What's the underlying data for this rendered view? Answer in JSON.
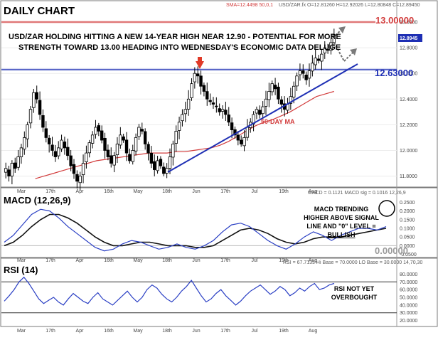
{
  "chart_data": {
    "type": "candlestick",
    "title": "DAILY CHART",
    "symbol_readout": "USD/ZAR.fx O=12.81260 H=12.92026 L=12.80848 C=12.89450",
    "sma_readout": "SMA=12.4498 50,0,1",
    "last_price_label": "12.8945",
    "headline": [
      "USD/ZAR HOLDING HITTING A NEW 14-YEAR HIGH NEAR 12.90 - POTENTIAL FOR MORE",
      "STRENGTH TOWARD 13.00 HEADING INTO WEDNESDAY'S ECONOMIC DATA DELUGE"
    ],
    "price_ylim": [
      11.72,
      13.05
    ],
    "price_ticks": [
      "13.0000",
      "12.8000",
      "12.6000",
      "12.4000",
      "12.2000",
      "12.0000",
      "11.8000"
    ],
    "levels": [
      {
        "label": "13.00000",
        "value": 13.0,
        "color": "#d23c3c"
      },
      {
        "label": "12.63000",
        "value": 12.63,
        "color": "#1e2fb4"
      }
    ],
    "ma_label": "50-DAY MA",
    "x_labels": [
      "Mar",
      "17th",
      "Apr",
      "16th",
      "May",
      "18th",
      "Jun",
      "17th",
      "Jul",
      "19th",
      "Aug"
    ],
    "closes": [
      11.86,
      11.8,
      11.9,
      11.86,
      11.95,
      12.02,
      12.1,
      12.2,
      12.32,
      12.45,
      12.4,
      12.28,
      12.18,
      12.1,
      12.05,
      12.0,
      11.95,
      12.02,
      12.08,
      12.02,
      11.96,
      11.88,
      11.82,
      11.76,
      11.8,
      11.9,
      11.98,
      12.06,
      12.12,
      12.18,
      12.15,
      12.08,
      12.0,
      11.95,
      11.9,
      11.96,
      12.05,
      12.12,
      12.08,
      11.98,
      11.92,
      12.0,
      12.1,
      12.18,
      12.15,
      12.05,
      11.98,
      11.9,
      11.85,
      11.92,
      11.88,
      11.82,
      11.86,
      11.95,
      12.05,
      12.15,
      12.22,
      12.28,
      12.32,
      12.4,
      12.52,
      12.6,
      12.58,
      12.5,
      12.46,
      12.4,
      12.38,
      12.36,
      12.34,
      12.3,
      12.32,
      12.28,
      12.22,
      12.16,
      12.12,
      12.08,
      12.05,
      12.1,
      12.18,
      12.22,
      12.28,
      12.32,
      12.28,
      12.34,
      12.4,
      12.46,
      12.52,
      12.48,
      12.4,
      12.36,
      12.32,
      12.36,
      12.42,
      12.5,
      12.58,
      12.62,
      12.6,
      12.55,
      12.62,
      12.68,
      12.72,
      12.7,
      12.75,
      12.8,
      12.78,
      12.84,
      12.9
    ],
    "ma50": [
      11.78,
      11.8,
      11.82,
      11.84,
      11.86,
      11.88,
      11.9,
      11.92,
      11.93,
      11.94,
      11.95,
      11.96,
      11.97,
      11.98,
      11.98,
      11.98,
      11.99,
      11.99,
      12.0,
      12.01,
      12.02,
      12.04,
      12.07,
      12.11,
      12.15,
      12.19,
      12.22,
      12.24,
      12.27,
      12.3,
      12.34,
      12.38,
      12.42,
      12.44,
      12.46
    ],
    "macd": {
      "title": "MACD (12,26,9)",
      "readout": "MACD = 0.1121 MACD sig = 0.1016   12,26,9",
      "ylim": [
        -0.06,
        0.26
      ],
      "ticks": [
        "0.2500",
        "0.2000",
        "0.1500",
        "0.1000",
        "0.0500",
        "0.0000",
        "-0.0500"
      ],
      "zero_label": "0.00000",
      "annotation": [
        "MACD TRENDING",
        "HIGHER ABOVE SIGNAL",
        "LINE AND \"0\" LEVEL =",
        "BULLISH"
      ],
      "macd_line": [
        0.02,
        0.06,
        0.12,
        0.18,
        0.21,
        0.2,
        0.16,
        0.11,
        0.07,
        0.03,
        -0.01,
        -0.03,
        -0.02,
        0.01,
        0.03,
        0.02,
        0.0,
        -0.02,
        -0.01,
        0.01,
        -0.01,
        -0.02,
        0.0,
        0.03,
        0.08,
        0.12,
        0.13,
        0.11,
        0.07,
        0.03,
        0.0,
        -0.02,
        0.01,
        0.05,
        0.08,
        0.06,
        0.03,
        0.06,
        0.08,
        0.1,
        0.1,
        0.09,
        0.11
      ],
      "signal_line": [
        0.0,
        0.02,
        0.06,
        0.11,
        0.15,
        0.18,
        0.18,
        0.16,
        0.13,
        0.09,
        0.05,
        0.02,
        0.0,
        0.0,
        0.01,
        0.02,
        0.02,
        0.01,
        0.0,
        0.0,
        0.0,
        -0.01,
        -0.01,
        0.0,
        0.03,
        0.06,
        0.09,
        0.1,
        0.09,
        0.07,
        0.04,
        0.02,
        0.01,
        0.02,
        0.04,
        0.05,
        0.05,
        0.05,
        0.06,
        0.07,
        0.08,
        0.09,
        0.1
      ]
    },
    "rsi": {
      "title": "RSI (14)",
      "readout": "RSI = 67.7133  Hi Base = 70.0000  LO Base = 30.0000   14,70,30",
      "ylim": [
        15,
        85
      ],
      "ticks": [
        "80.0000",
        "70.0000",
        "60.0000",
        "50.0000",
        "40.0000",
        "30.0000",
        "20.0000"
      ],
      "bands": [
        70,
        30
      ],
      "annotation": [
        "RSI NOT YET",
        "OVERBOUGHT"
      ],
      "values": [
        45,
        52,
        60,
        70,
        76,
        68,
        58,
        48,
        42,
        46,
        50,
        44,
        40,
        48,
        55,
        50,
        45,
        42,
        50,
        56,
        48,
        44,
        40,
        46,
        52,
        58,
        50,
        44,
        50,
        60,
        66,
        62,
        54,
        48,
        44,
        50,
        58,
        64,
        72,
        62,
        52,
        44,
        48,
        55,
        60,
        52,
        46,
        40,
        45,
        52,
        58,
        62,
        66,
        60,
        54,
        58,
        64,
        60,
        52,
        56,
        62,
        58,
        64,
        68,
        60,
        62,
        66,
        68
      ]
    }
  }
}
